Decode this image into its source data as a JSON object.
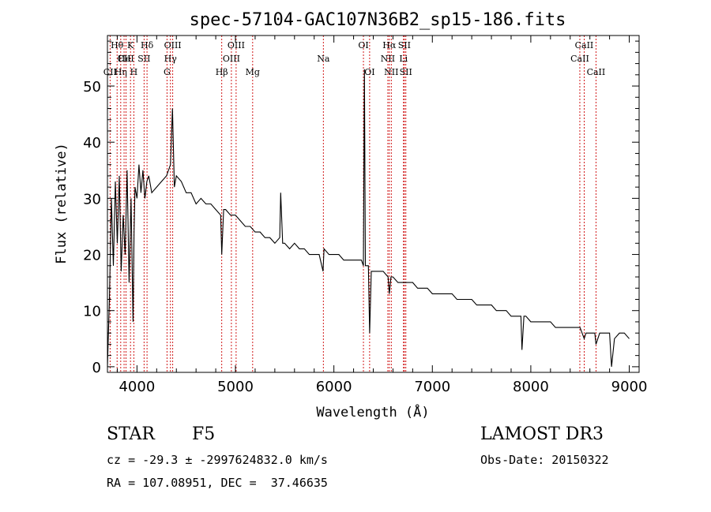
{
  "chart_data": {
    "type": "line",
    "title": "spec-57104-GAC107N36B2_sp15-186.fits",
    "xlabel": "Wavelength (Å)",
    "ylabel": "Flux (relative)",
    "xlim": [
      3700,
      9100
    ],
    "ylim": [
      -1,
      59
    ],
    "xticks": [
      4000,
      5000,
      6000,
      7000,
      8000,
      9000
    ],
    "xtick_labels": [
      "4000",
      "5000",
      "6000",
      "7000",
      "8000",
      "9000"
    ],
    "yticks": [
      0,
      10,
      20,
      30,
      40,
      50
    ],
    "ytick_labels": [
      "0",
      "10",
      "20",
      "30",
      "40",
      "50"
    ],
    "spectrum": {
      "name": "Flux",
      "x": [
        3700,
        3720,
        3740,
        3760,
        3780,
        3800,
        3820,
        3840,
        3860,
        3880,
        3900,
        3920,
        3940,
        3960,
        3970,
        3980,
        4000,
        4020,
        4040,
        4060,
        4080,
        4100,
        4120,
        4150,
        4200,
        4250,
        4300,
        4340,
        4360,
        4380,
        4400,
        4450,
        4500,
        4550,
        4600,
        4650,
        4700,
        4750,
        4800,
        4850,
        4861,
        4880,
        4900,
        4950,
        5000,
        5050,
        5100,
        5150,
        5200,
        5250,
        5300,
        5350,
        5400,
        5450,
        5460,
        5480,
        5500,
        5550,
        5600,
        5650,
        5700,
        5750,
        5800,
        5850,
        5890,
        5900,
        5950,
        6000,
        6050,
        6100,
        6150,
        6200,
        6250,
        6280,
        6300,
        6310,
        6320,
        6350,
        6363,
        6380,
        6400,
        6450,
        6500,
        6550,
        6563,
        6580,
        6600,
        6650,
        6700,
        6750,
        6800,
        6850,
        6900,
        6950,
        7000,
        7050,
        7100,
        7150,
        7200,
        7250,
        7300,
        7350,
        7400,
        7450,
        7500,
        7550,
        7600,
        7650,
        7700,
        7750,
        7800,
        7850,
        7900,
        7910,
        7930,
        7950,
        8000,
        8050,
        8100,
        8150,
        8200,
        8250,
        8300,
        8350,
        8400,
        8450,
        8500,
        8542,
        8560,
        8600,
        8650,
        8662,
        8700,
        8750,
        8800,
        8820,
        8850,
        8900,
        8950,
        9000
      ],
      "y": [
        0,
        12,
        30,
        18,
        33,
        22,
        34,
        17,
        27,
        20,
        35,
        15,
        30,
        8,
        24,
        32,
        30,
        36,
        31,
        35,
        30,
        33,
        34,
        31,
        32,
        33,
        34,
        36,
        46,
        32,
        34,
        33,
        31,
        31,
        29,
        30,
        29,
        29,
        28,
        27,
        20,
        28,
        28,
        27,
        27,
        26,
        25,
        25,
        24,
        24,
        23,
        23,
        22,
        23,
        31,
        22,
        22,
        21,
        22,
        21,
        21,
        20,
        20,
        20,
        17,
        21,
        20,
        20,
        20,
        19,
        19,
        19,
        19,
        19,
        18,
        53,
        18,
        18,
        6,
        17,
        17,
        17,
        17,
        16,
        13,
        16,
        16,
        15,
        15,
        15,
        15,
        14,
        14,
        14,
        13,
        13,
        13,
        13,
        13,
        12,
        12,
        12,
        12,
        11,
        11,
        11,
        11,
        10,
        10,
        10,
        9,
        9,
        9,
        3,
        9,
        9,
        8,
        8,
        8,
        8,
        8,
        7,
        7,
        7,
        7,
        7,
        7,
        5,
        6,
        6,
        6,
        4,
        6,
        6,
        6,
        0,
        5,
        6,
        6,
        5
      ]
    },
    "lines": [
      {
        "name": "CII",
        "wavelength": 3727,
        "row": 2
      },
      {
        "name": "Hθ",
        "wavelength": 3798,
        "row": 0
      },
      {
        "name": "Hη",
        "wavelength": 3835,
        "row": 2
      },
      {
        "name": "CII",
        "wavelength": 3869,
        "row": 1
      },
      {
        "name": "HeI",
        "wavelength": 3889,
        "row": 1
      },
      {
        "name": "K",
        "wavelength": 3934,
        "row": 0
      },
      {
        "name": "H",
        "wavelength": 3968,
        "row": 2
      },
      {
        "name": "SII",
        "wavelength": 4072,
        "row": 1
      },
      {
        "name": "Hδ",
        "wavelength": 4102,
        "row": 0
      },
      {
        "name": "G",
        "wavelength": 4305,
        "row": 2
      },
      {
        "name": "Hγ",
        "wavelength": 4340,
        "row": 1
      },
      {
        "name": "OIII",
        "wavelength": 4363,
        "row": 0
      },
      {
        "name": "Hβ",
        "wavelength": 4861,
        "row": 2
      },
      {
        "name": "OIII",
        "wavelength": 4959,
        "row": 1
      },
      {
        "name": "OIII",
        "wavelength": 5007,
        "row": 0
      },
      {
        "name": "Mg",
        "wavelength": 5175,
        "row": 2
      },
      {
        "name": "Na",
        "wavelength": 5893,
        "row": 1
      },
      {
        "name": "OI",
        "wavelength": 6300,
        "row": 0
      },
      {
        "name": "OI",
        "wavelength": 6363,
        "row": 2
      },
      {
        "name": "NII",
        "wavelength": 6548,
        "row": 1
      },
      {
        "name": "Hα",
        "wavelength": 6563,
        "row": 0
      },
      {
        "name": "NII",
        "wavelength": 6583,
        "row": 2
      },
      {
        "name": "Li",
        "wavelength": 6707,
        "row": 1
      },
      {
        "name": "SII",
        "wavelength": 6716,
        "row": 0
      },
      {
        "name": "SII",
        "wavelength": 6731,
        "row": 2
      },
      {
        "name": "CaII",
        "wavelength": 8498,
        "row": 1
      },
      {
        "name": "CaII",
        "wavelength": 8542,
        "row": 0
      },
      {
        "name": "CaII",
        "wavelength": 8662,
        "row": 2
      }
    ]
  },
  "info": {
    "class": "STAR",
    "subclass": "F5",
    "survey": "LAMOST DR3",
    "redshift": "cz = -29.3 ± -2997624832.0 km/s",
    "obs_date": "Obs-Date: 20150322",
    "coords": "RA = 107.08951, DEC =  37.46635"
  },
  "colors": {
    "spectrum": "#000000",
    "line_marker": "#cc0000",
    "background": "#ffffff"
  }
}
